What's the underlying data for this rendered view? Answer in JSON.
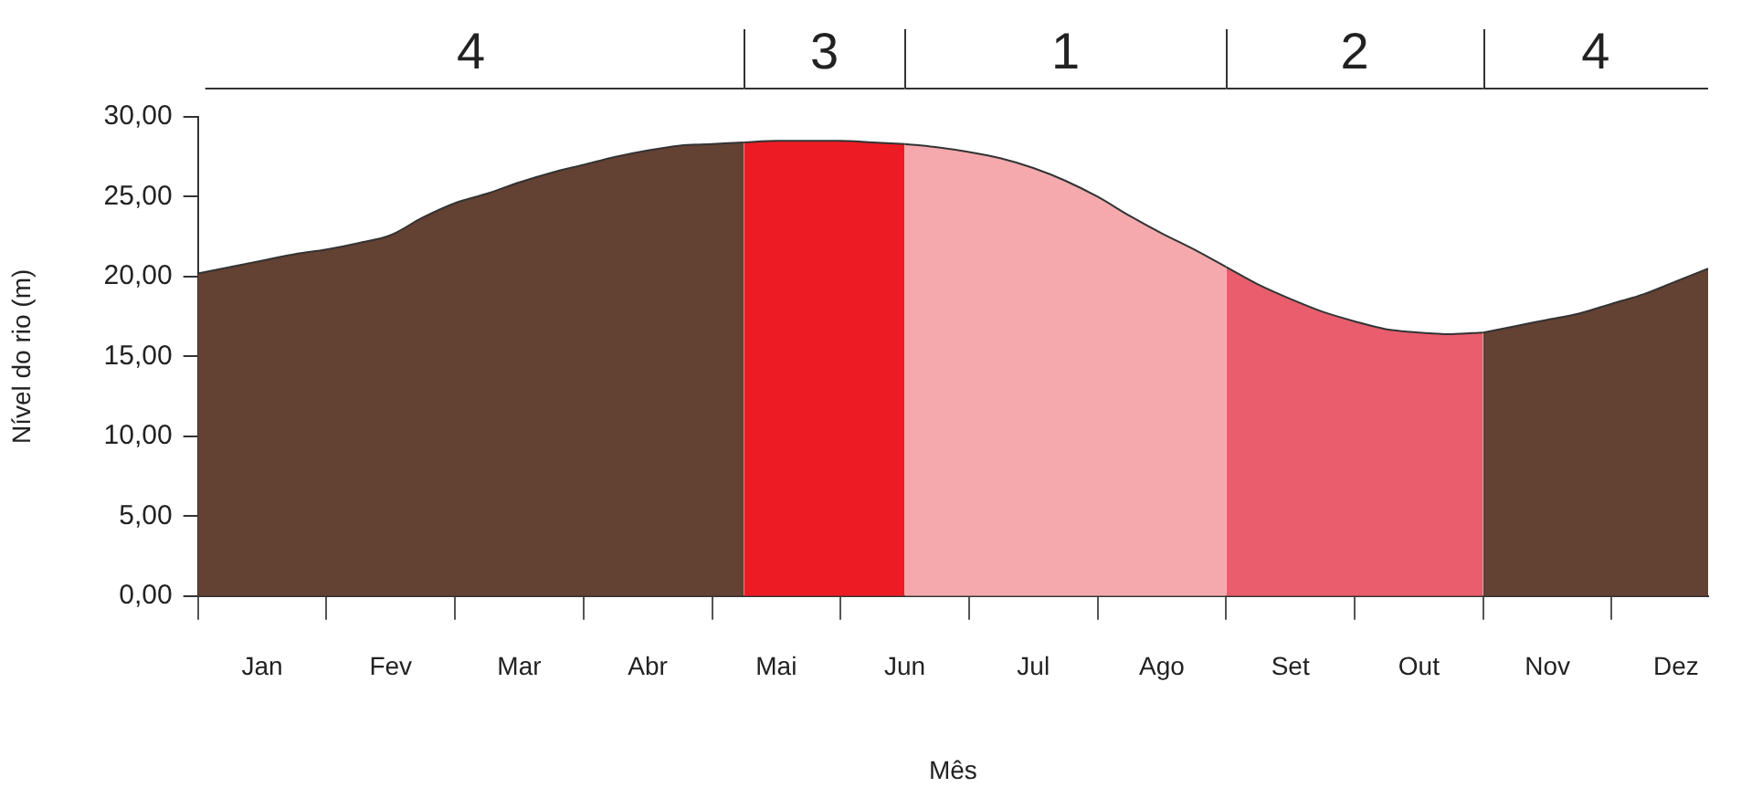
{
  "chart_data": {
    "type": "area",
    "xlabel": "Mês",
    "ylabel": "Nível do rio (m)",
    "categories": [
      null,
      null,
      "Jan",
      null,
      null,
      null,
      "Fev",
      null,
      null,
      null,
      "Mar",
      null,
      null,
      null,
      "Abr",
      null,
      null,
      null,
      "Mai",
      null,
      null,
      null,
      "Jun",
      null,
      null,
      null,
      "Jul",
      null,
      null,
      null,
      "Ago",
      null,
      null,
      null,
      "Set",
      null,
      null,
      null,
      "Out",
      null,
      null,
      null,
      "Nov",
      null,
      null,
      null,
      "Dez",
      null
    ],
    "ylim": [
      0,
      30
    ],
    "yticks": [
      {
        "value": 0,
        "label": "0,00"
      },
      {
        "value": 5,
        "label": "5,00"
      },
      {
        "value": 10,
        "label": "10,00"
      },
      {
        "value": 15,
        "label": "15,00"
      },
      {
        "value": 20,
        "label": "20,00"
      },
      {
        "value": 25,
        "label": "25,00"
      },
      {
        "value": 30,
        "label": "30,00"
      }
    ],
    "grid": false,
    "legend": false,
    "series": [
      {
        "color": "#634133",
        "values": [
          20.2,
          20.6,
          21.0,
          21.4,
          21.7,
          22.1,
          22.6,
          23.7,
          24.6,
          25.2,
          25.9,
          26.5,
          27.0,
          27.5,
          27.9,
          28.2,
          28.3,
          28.4,
          null,
          null,
          null,
          null,
          null,
          null,
          null,
          null,
          null,
          null,
          null,
          null,
          null,
          null,
          null,
          null,
          null,
          null,
          null,
          null,
          null,
          null,
          null,
          null,
          null,
          null,
          null,
          null,
          null,
          null
        ]
      },
      {
        "color": "#ed1c24",
        "values": [
          null,
          null,
          null,
          null,
          null,
          null,
          null,
          null,
          null,
          null,
          null,
          null,
          null,
          null,
          null,
          null,
          null,
          28.4,
          28.5,
          28.5,
          28.5,
          28.4,
          28.3,
          null,
          null,
          null,
          null,
          null,
          null,
          null,
          null,
          null,
          null,
          null,
          null,
          null,
          null,
          null,
          null,
          null,
          null,
          null,
          null,
          null,
          null,
          null,
          null,
          null
        ]
      },
      {
        "color": "#f5a9ac",
        "values": [
          null,
          null,
          null,
          null,
          null,
          null,
          null,
          null,
          null,
          null,
          null,
          null,
          null,
          null,
          null,
          null,
          null,
          null,
          null,
          null,
          null,
          null,
          28.3,
          28.1,
          27.8,
          27.4,
          26.8,
          26.0,
          25.0,
          23.8,
          22.7,
          21.7,
          20.6,
          null,
          null,
          null,
          null,
          null,
          null,
          null,
          null,
          null,
          null,
          null,
          null,
          null,
          null,
          null
        ]
      },
      {
        "color": "#e95d6d",
        "values": [
          null,
          null,
          null,
          null,
          null,
          null,
          null,
          null,
          null,
          null,
          null,
          null,
          null,
          null,
          null,
          null,
          null,
          null,
          null,
          null,
          null,
          null,
          null,
          null,
          null,
          null,
          null,
          null,
          null,
          null,
          null,
          null,
          20.6,
          19.5,
          18.6,
          17.8,
          17.2,
          16.7,
          16.5,
          16.4,
          16.5,
          null,
          null,
          null,
          null,
          null,
          null,
          null
        ]
      },
      {
        "color": "#634133",
        "values": [
          null,
          null,
          null,
          null,
          null,
          null,
          null,
          null,
          null,
          null,
          null,
          null,
          null,
          null,
          null,
          null,
          null,
          null,
          null,
          null,
          null,
          null,
          null,
          null,
          null,
          null,
          null,
          null,
          null,
          null,
          null,
          null,
          null,
          null,
          null,
          null,
          null,
          null,
          null,
          null,
          16.5,
          16.9,
          17.3,
          17.7,
          18.3,
          18.9,
          19.7,
          20.5
        ]
      }
    ],
    "annotations": [
      "4",
      "3",
      "1",
      "2",
      "4"
    ]
  }
}
